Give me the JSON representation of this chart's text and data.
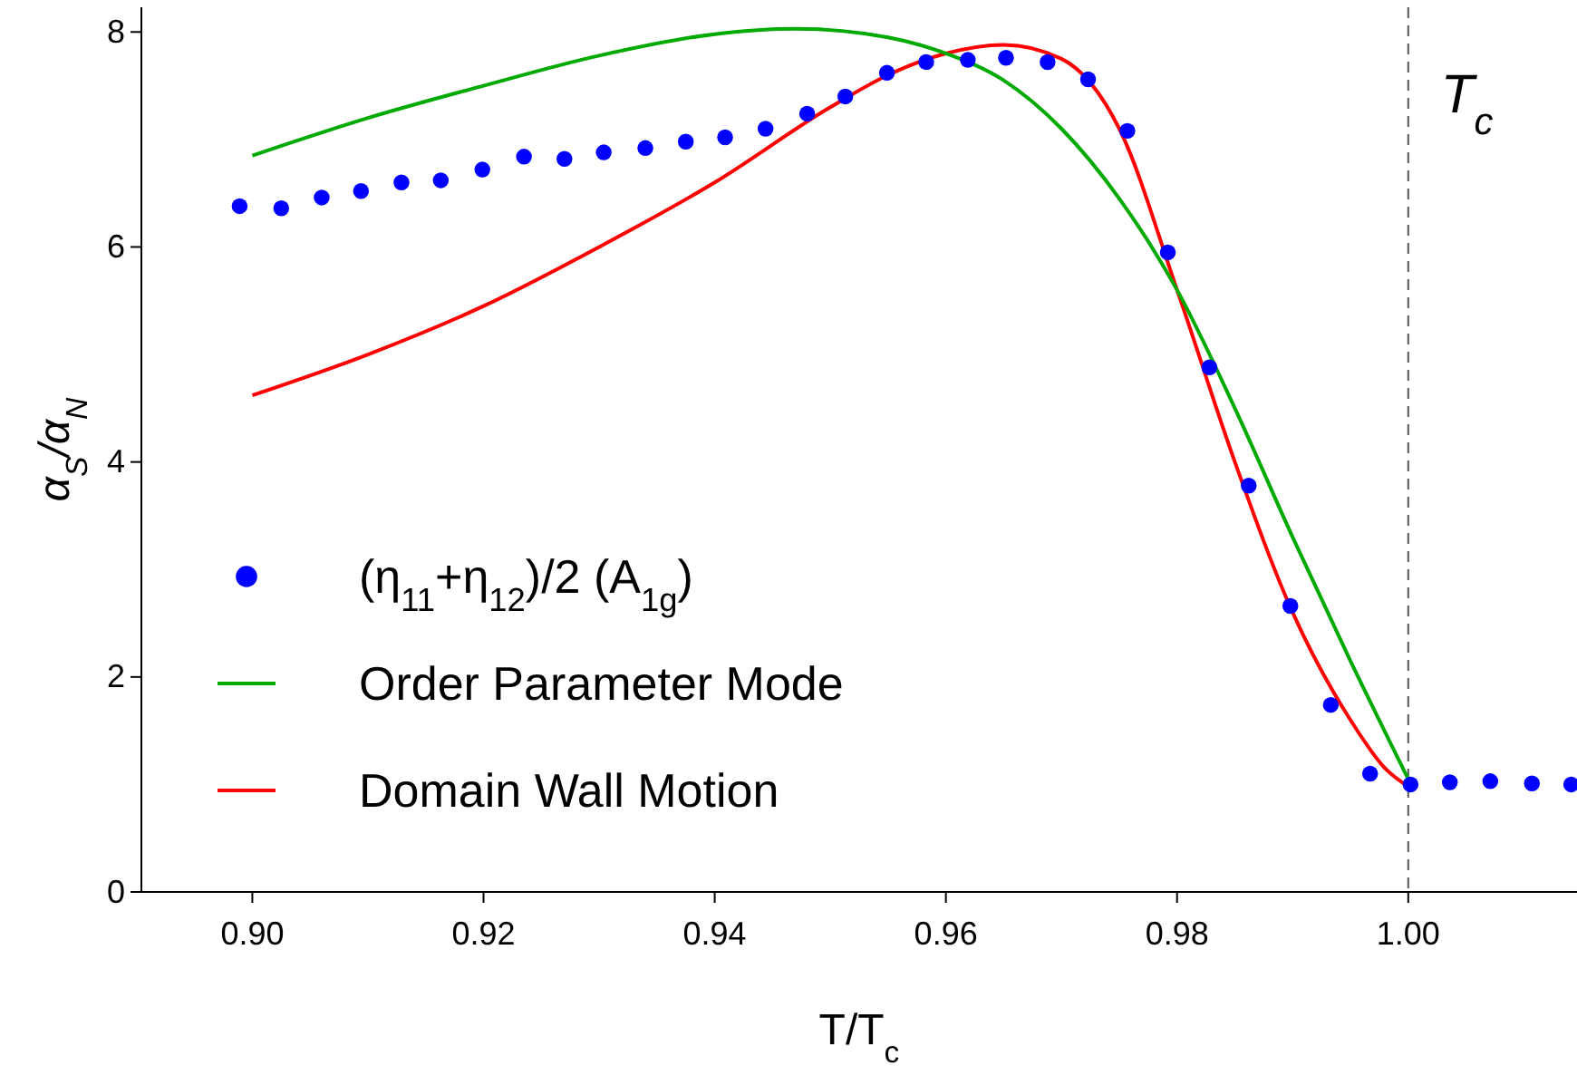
{
  "chart_data": {
    "type": "line",
    "xlabel": "T/T$_{c}$",
    "ylabel": "α$_{S}$/α$_{N}$",
    "xlim": [
      0.8904,
      1.0146
    ],
    "ylim": [
      0,
      8.23
    ],
    "xticks": [
      {
        "value": 0.9,
        "label": "0.90"
      },
      {
        "value": 0.92,
        "label": "0.92"
      },
      {
        "value": 0.94,
        "label": "0.94"
      },
      {
        "value": 0.96,
        "label": "0.96"
      },
      {
        "value": 0.98,
        "label": "0.98"
      },
      {
        "value": 1.0,
        "label": "1.00"
      }
    ],
    "yticks": [
      0,
      2,
      4,
      6,
      8
    ],
    "legend": "bottom left",
    "grid": false,
    "ref_lines": [
      {
        "axis": "x",
        "value": 1.0,
        "label": "T$_{c}$",
        "line_style": "dashed",
        "color": "#555555"
      }
    ],
    "series": [
      {
        "name": "(η$_{11}$+η$_{12}$)/2 (A$_{1g}$)",
        "type": "scatter",
        "marker": "circle",
        "color": "#0000ff",
        "x": [
          0.8989,
          0.9025,
          0.906,
          0.9094,
          0.9129,
          0.9163,
          0.9199,
          0.9235,
          0.927,
          0.9304,
          0.934,
          0.9375,
          0.9409,
          0.9444,
          0.948,
          0.9513,
          0.9549,
          0.9583,
          0.9619,
          0.9652,
          0.9688,
          0.9723,
          0.9757,
          0.9792,
          0.9828,
          0.9862,
          0.9898,
          0.9933,
          0.9967,
          1.0002,
          1.0036,
          1.0071,
          1.0107,
          1.0141
        ],
        "values": [
          6.38,
          6.36,
          6.46,
          6.52,
          6.6,
          6.62,
          6.72,
          6.84,
          6.82,
          6.88,
          6.92,
          6.98,
          7.02,
          7.1,
          7.24,
          7.4,
          7.62,
          7.72,
          7.74,
          7.76,
          7.72,
          7.56,
          7.08,
          5.95,
          4.88,
          3.78,
          2.66,
          1.74,
          1.1,
          1.0,
          1.02,
          1.03,
          1.01,
          1.0
        ]
      },
      {
        "name": "Order Parameter Mode",
        "color": "#00aa00",
        "x": [
          0.9,
          0.91,
          0.92,
          0.93,
          0.94,
          0.947,
          0.955,
          0.96,
          0.965,
          0.97,
          0.975,
          0.98,
          0.985,
          0.99,
          0.995,
          1.0
        ],
        "values": [
          6.85,
          7.2,
          7.5,
          7.78,
          7.98,
          8.03,
          7.95,
          7.8,
          7.55,
          7.1,
          6.45,
          5.6,
          4.5,
          3.3,
          2.15,
          1.05
        ]
      },
      {
        "name": "Domain Wall Motion",
        "color": "#ff0000",
        "x": [
          0.9,
          0.91,
          0.92,
          0.93,
          0.94,
          0.95,
          0.955,
          0.96,
          0.965,
          0.97,
          0.975,
          0.98,
          0.985,
          0.99,
          0.995,
          0.998,
          1.0
        ],
        "values": [
          4.62,
          5.0,
          5.45,
          6.0,
          6.6,
          7.3,
          7.6,
          7.8,
          7.88,
          7.75,
          7.1,
          5.6,
          4.0,
          2.6,
          1.6,
          1.15,
          0.98
        ]
      }
    ]
  }
}
